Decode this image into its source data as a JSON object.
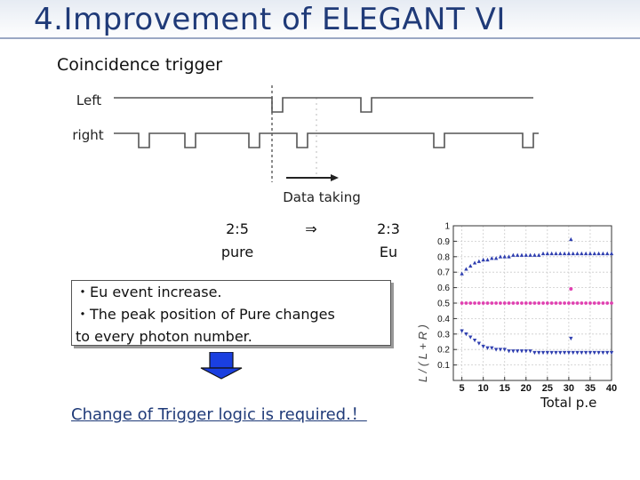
{
  "header": {
    "title": "4.Improvement of ELEGANT VI"
  },
  "trigger": {
    "heading": "Coincidence trigger",
    "left_label": "Left",
    "right_label": "right",
    "data_taking_label": "Data taking"
  },
  "ratios": {
    "left_ratio": "2:5",
    "left_name": "pure",
    "arrow": "⇒",
    "right_ratio": "2:3",
    "right_name": "Eu"
  },
  "notes": {
    "line1": "・Eu event increase.",
    "line2": "・The peak position of Pure changes",
    "line3": "to every photon number."
  },
  "conclusion": "Change of Trigger logic is required.！",
  "chart_data": {
    "type": "scatter",
    "xlabel": "Total p.e",
    "ylabel_rotated": "L / ( L + R )",
    "xlim": [
      3,
      40
    ],
    "ylim": [
      0,
      1
    ],
    "x_ticks": [
      5,
      10,
      15,
      20,
      25,
      30,
      35,
      40
    ],
    "y_ticks": [
      0.1,
      0.2,
      0.3,
      0.4,
      0.5,
      0.6,
      0.7,
      0.8,
      0.9,
      1
    ],
    "legend_position": "right",
    "series": [
      {
        "color": "#2f3fb0",
        "marker": "triangle-up",
        "x": [
          5,
          6,
          7,
          8,
          9,
          10,
          11,
          12,
          13,
          14,
          15,
          16,
          17,
          18,
          19,
          20,
          21,
          22,
          23,
          24,
          25,
          26,
          27,
          28,
          29,
          30,
          31,
          32,
          33,
          34,
          35,
          36,
          37,
          38,
          39,
          40
        ],
        "y": [
          0.69,
          0.72,
          0.74,
          0.76,
          0.77,
          0.78,
          0.78,
          0.79,
          0.79,
          0.8,
          0.8,
          0.8,
          0.81,
          0.81,
          0.81,
          0.81,
          0.81,
          0.81,
          0.81,
          0.82,
          0.82,
          0.82,
          0.82,
          0.82,
          0.82,
          0.82,
          0.82,
          0.82,
          0.82,
          0.82,
          0.82,
          0.82,
          0.82,
          0.82,
          0.82,
          0.82
        ]
      },
      {
        "color": "#e040b0",
        "marker": "circle",
        "x": [
          5,
          6,
          7,
          8,
          9,
          10,
          11,
          12,
          13,
          14,
          15,
          16,
          17,
          18,
          19,
          20,
          21,
          22,
          23,
          24,
          25,
          26,
          27,
          28,
          29,
          30,
          31,
          32,
          33,
          34,
          35,
          36,
          37,
          38,
          39,
          40
        ],
        "y": [
          0.5,
          0.5,
          0.5,
          0.5,
          0.5,
          0.5,
          0.5,
          0.5,
          0.5,
          0.5,
          0.5,
          0.5,
          0.5,
          0.5,
          0.5,
          0.5,
          0.5,
          0.5,
          0.5,
          0.5,
          0.5,
          0.5,
          0.5,
          0.5,
          0.5,
          0.5,
          0.5,
          0.5,
          0.5,
          0.5,
          0.5,
          0.5,
          0.5,
          0.5,
          0.5,
          0.5
        ]
      },
      {
        "color": "#2f3fb0",
        "marker": "triangle-down",
        "x": [
          5,
          6,
          7,
          8,
          9,
          10,
          11,
          12,
          13,
          14,
          15,
          16,
          17,
          18,
          19,
          20,
          21,
          22,
          23,
          24,
          25,
          26,
          27,
          28,
          29,
          30,
          31,
          32,
          33,
          34,
          35,
          36,
          37,
          38,
          39,
          40
        ],
        "y": [
          0.32,
          0.3,
          0.28,
          0.26,
          0.24,
          0.22,
          0.21,
          0.21,
          0.2,
          0.2,
          0.2,
          0.19,
          0.19,
          0.19,
          0.19,
          0.19,
          0.19,
          0.18,
          0.18,
          0.18,
          0.18,
          0.18,
          0.18,
          0.18,
          0.18,
          0.18,
          0.18,
          0.18,
          0.18,
          0.18,
          0.18,
          0.18,
          0.18,
          0.18,
          0.18,
          0.18
        ]
      }
    ]
  }
}
